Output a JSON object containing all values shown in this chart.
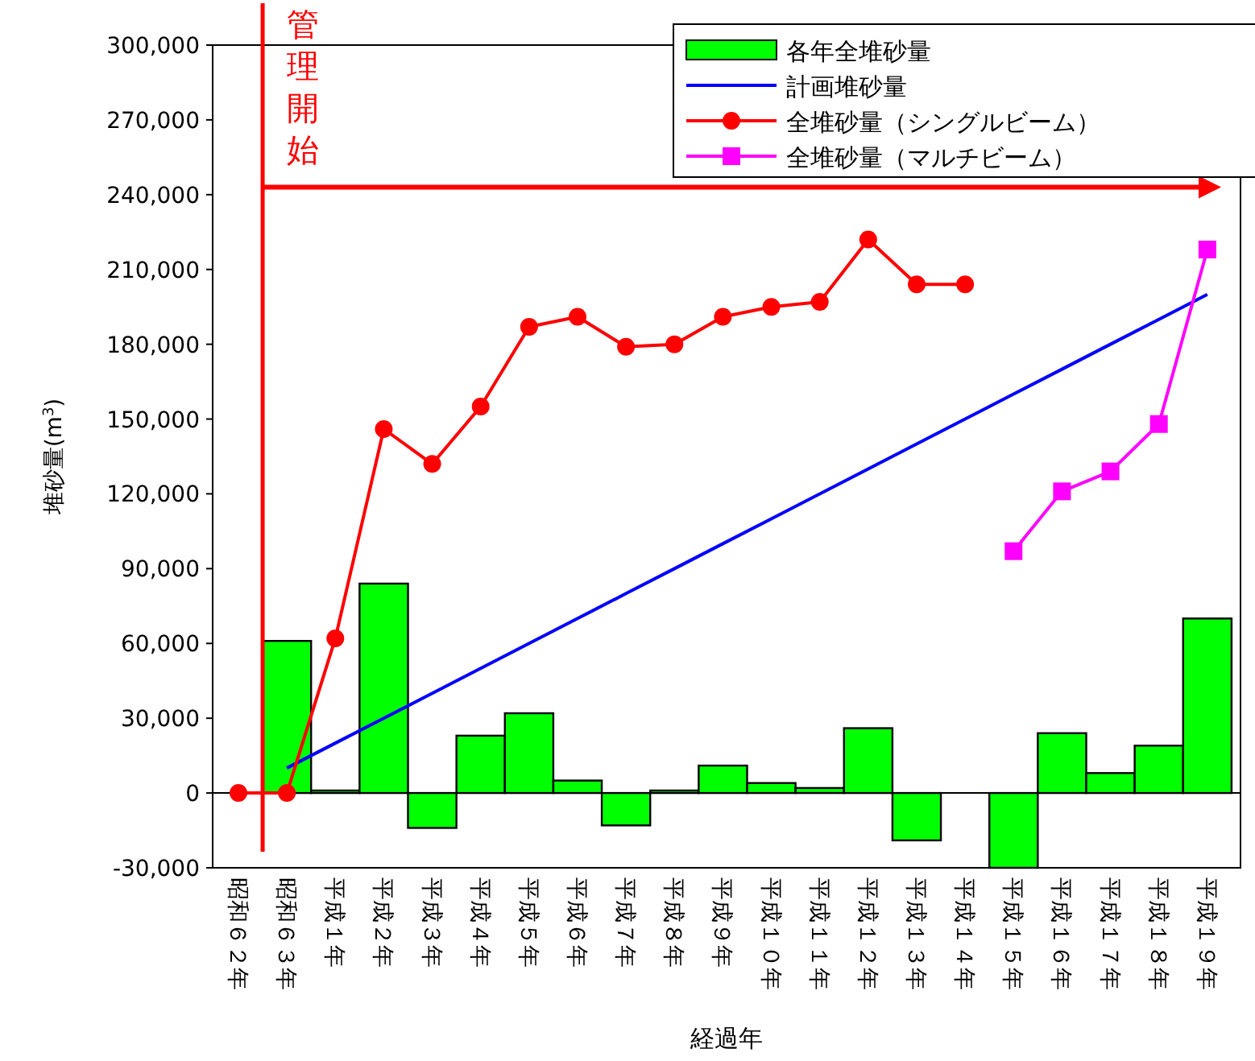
{
  "chart_data": {
    "type": "bar",
    "xlabel": "経過年",
    "ylabel": "堆砂量(m$^{3}$)",
    "categories": [
      "昭和６２年",
      "昭和６３年",
      "平成１年",
      "平成２年",
      "平成３年",
      "平成４年",
      "平成５年",
      "平成６年",
      "平成７年",
      "平成８年",
      "平成９年",
      "平成１０年",
      "平成１１年",
      "平成１２年",
      "平成１３年",
      "平成１４年",
      "平成１５年",
      "平成１６年",
      "平成１７年",
      "平成１８年",
      "平成１９年"
    ],
    "series": [
      {
        "name": "各年全堆砂量",
        "type": "bar",
        "color": "#00ff00",
        "values": [
          null,
          61000,
          1000,
          84000,
          -14000,
          23000,
          32000,
          5000,
          -13000,
          1000,
          11000,
          4000,
          2000,
          26000,
          -19000,
          null,
          -30000,
          24000,
          8000,
          19000,
          70000
        ]
      },
      {
        "name": "計画堆砂量",
        "type": "line",
        "color": "#0000ff",
        "marker": "none",
        "values": [
          null,
          10000,
          20000,
          30000,
          40000,
          50000,
          60000,
          70000,
          80000,
          90000,
          100000,
          110000,
          120000,
          130000,
          140000,
          150000,
          160000,
          170000,
          180000,
          190000,
          200000
        ]
      },
      {
        "name": "全堆砂量（シングルビーム）",
        "type": "line",
        "color": "#ff0000",
        "marker": "circle",
        "values": [
          0,
          0,
          62000,
          146000,
          132000,
          155000,
          187000,
          191000,
          179000,
          180000,
          191000,
          195000,
          197000,
          222000,
          204000,
          204000,
          null,
          null,
          null,
          null,
          null
        ]
      },
      {
        "name": "全堆砂量（マルチビーム）",
        "type": "line",
        "color": "#ff00ff",
        "marker": "square",
        "values": [
          null,
          null,
          null,
          null,
          null,
          null,
          null,
          null,
          null,
          null,
          null,
          null,
          null,
          null,
          null,
          null,
          97000,
          121000,
          129000,
          148000,
          218000
        ]
      }
    ],
    "ylim": [
      -30000,
      300000
    ],
    "yticks": [
      {
        "value": -30000,
        "label": "-30,000"
      },
      {
        "value": 0,
        "label": "0"
      },
      {
        "value": 30000,
        "label": "30,000"
      },
      {
        "value": 60000,
        "label": "60,000"
      },
      {
        "value": 90000,
        "label": "90,000"
      },
      {
        "value": 120000,
        "label": "120,000"
      },
      {
        "value": 150000,
        "label": "150,000"
      },
      {
        "value": 180000,
        "label": "180,000"
      },
      {
        "value": 210000,
        "label": "210,000"
      },
      {
        "value": 240000,
        "label": "240,000"
      },
      {
        "value": 270000,
        "label": "270,000"
      },
      {
        "value": 300000,
        "label": "300,000"
      }
    ],
    "ref_lines": [
      {
        "axis": "x",
        "value": "昭和６３年",
        "label": "管理開始",
        "color": "#ff0000"
      },
      {
        "axis": "y",
        "value": 243000,
        "color": "#ff0000"
      }
    ],
    "legend": "top right",
    "grid": false
  }
}
